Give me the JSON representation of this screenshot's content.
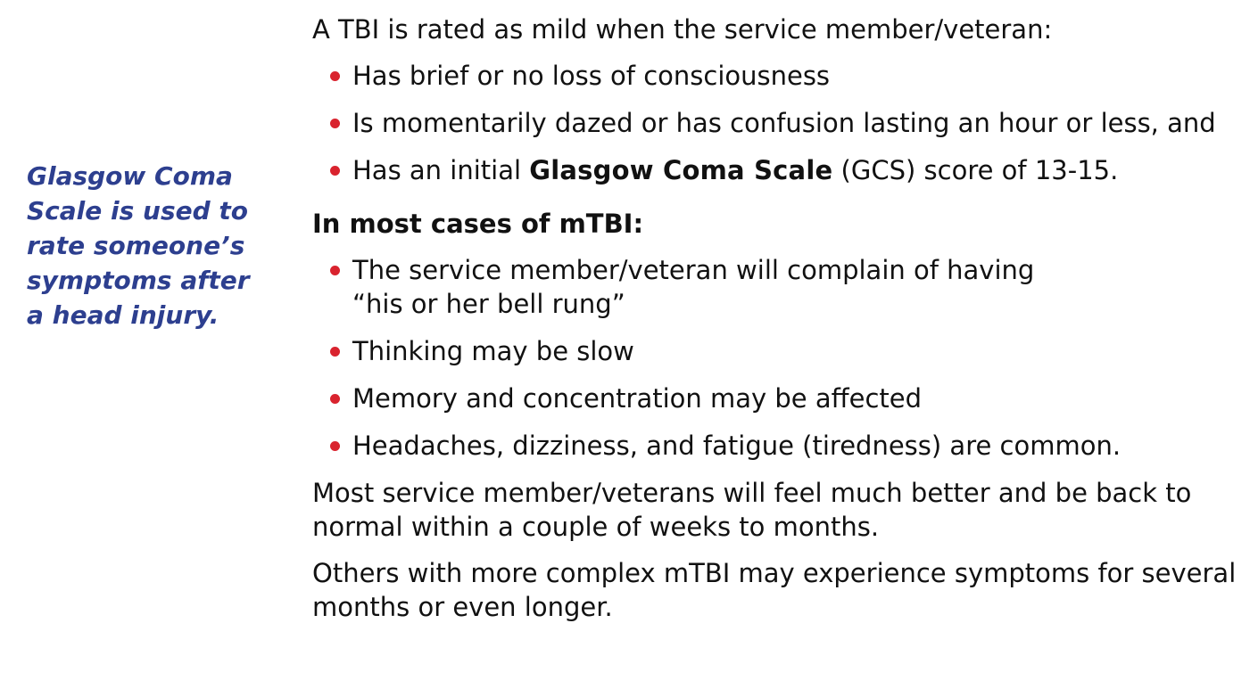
{
  "sidebar_note": {
    "lines": [
      "Glasgow Coma",
      "Scale is used to",
      "rate someone’s",
      "symptoms after",
      "a head injury."
    ]
  },
  "mild_section": {
    "intro": "A TBI is rated as mild when the service member/veteran:",
    "bullets": [
      "Has brief or no loss of consciousness",
      "Is momentarily dazed or has confusion lasting an hour or less, and"
    ],
    "gcs_bullet": {
      "prefix": "Has an initial ",
      "bold_term": "Glasgow Coma Scale",
      "suffix": " (GCS) score of 13-15."
    }
  },
  "cases_section": {
    "heading": "In most cases of mTBI:",
    "bullets": [
      {
        "lines": [
          "The service member/veteran will complain of having",
          "“his or her bell rung”"
        ]
      },
      {
        "lines": [
          "Thinking may be slow"
        ]
      },
      {
        "lines": [
          "Memory and concentration may be affected"
        ]
      },
      {
        "lines": [
          "Headaches, dizziness, and fatigue (tiredness) are common."
        ]
      }
    ]
  },
  "paragraphs": [
    {
      "lines": [
        "Most service member/veterans will feel much better and be back to",
        "normal within a couple of weeks to months."
      ]
    },
    {
      "lines": [
        "Others with more complex mTBI may experience symptoms for several",
        "months or even longer."
      ]
    }
  ],
  "colors": {
    "sidebar_text": "#2d3f8f",
    "bullet": "#d9232e",
    "body_text": "#111111"
  }
}
